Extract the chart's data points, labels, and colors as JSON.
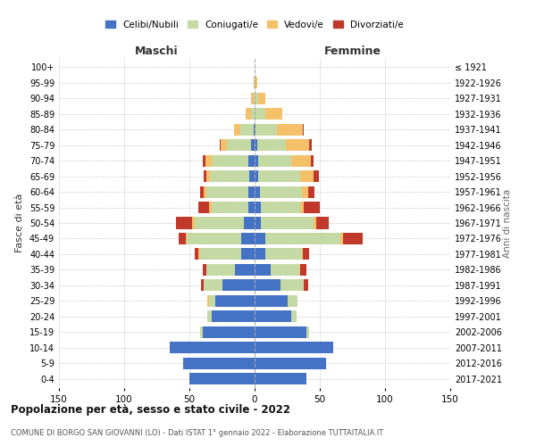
{
  "age_groups": [
    "0-4",
    "5-9",
    "10-14",
    "15-19",
    "20-24",
    "25-29",
    "30-34",
    "35-39",
    "40-44",
    "45-49",
    "50-54",
    "55-59",
    "60-64",
    "65-69",
    "70-74",
    "75-79",
    "80-84",
    "85-89",
    "90-94",
    "95-99",
    "100+"
  ],
  "birth_years": [
    "2017-2021",
    "2012-2016",
    "2007-2011",
    "2002-2006",
    "1997-2001",
    "1992-1996",
    "1987-1991",
    "1982-1986",
    "1977-1981",
    "1972-1976",
    "1967-1971",
    "1962-1966",
    "1957-1961",
    "1952-1956",
    "1947-1951",
    "1942-1946",
    "1937-1941",
    "1932-1936",
    "1927-1931",
    "1922-1926",
    "≤ 1921"
  ],
  "colors": {
    "celibi": "#4472C4",
    "coniugati": "#C5D9A4",
    "vedovi": "#F5C06A",
    "divorziati": "#C0392B"
  },
  "males": {
    "celibi": [
      50,
      55,
      65,
      40,
      33,
      30,
      25,
      15,
      10,
      10,
      8,
      5,
      5,
      4,
      5,
      3,
      1,
      0,
      0,
      0,
      0
    ],
    "coniugati": [
      0,
      0,
      0,
      2,
      3,
      5,
      14,
      22,
      32,
      42,
      38,
      28,
      32,
      30,
      28,
      18,
      10,
      3,
      1,
      0,
      0
    ],
    "vedovi": [
      0,
      0,
      0,
      0,
      0,
      1,
      0,
      0,
      1,
      1,
      2,
      2,
      2,
      3,
      5,
      5,
      5,
      4,
      2,
      1,
      0
    ],
    "divorziati": [
      0,
      0,
      0,
      0,
      0,
      0,
      2,
      3,
      3,
      5,
      12,
      8,
      3,
      2,
      2,
      1,
      0,
      0,
      0,
      0,
      0
    ]
  },
  "females": {
    "nubili": [
      40,
      55,
      60,
      40,
      28,
      25,
      20,
      12,
      8,
      8,
      5,
      5,
      4,
      3,
      3,
      2,
      1,
      0,
      0,
      0,
      0
    ],
    "coniugate": [
      0,
      0,
      0,
      2,
      4,
      8,
      18,
      22,
      28,
      58,
      40,
      30,
      32,
      32,
      25,
      22,
      16,
      8,
      3,
      1,
      0
    ],
    "vedove": [
      0,
      0,
      0,
      0,
      0,
      0,
      0,
      1,
      1,
      2,
      2,
      3,
      5,
      10,
      15,
      18,
      20,
      13,
      5,
      1,
      0
    ],
    "divorziate": [
      0,
      0,
      0,
      0,
      0,
      0,
      3,
      5,
      5,
      15,
      10,
      12,
      5,
      4,
      2,
      2,
      1,
      0,
      0,
      0,
      0
    ]
  },
  "xlim": 150,
  "title": "Popolazione per età, sesso e stato civile - 2022",
  "subtitle": "COMUNE DI BORGO SAN GIOVANNI (LO) - Dati ISTAT 1° gennaio 2022 - Elaborazione TUTTAITALIA.IT",
  "ylabel_left": "Fasce di età",
  "ylabel_right": "Anni di nascita",
  "xlabel_left": "Maschi",
  "xlabel_right": "Femmine",
  "legend_labels": [
    "Celibi/Nubili",
    "Coniugati/e",
    "Vedovi/e",
    "Divorziati/e"
  ],
  "bg_color": "#FFFFFF",
  "grid_color": "#CCCCCC"
}
